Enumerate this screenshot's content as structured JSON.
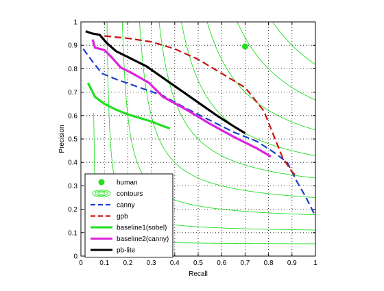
{
  "chart_data": {
    "type": "line",
    "xlabel": "Recall",
    "ylabel": "Precision",
    "xlim": [
      0,
      1
    ],
    "ylim": [
      0,
      1
    ],
    "xticks": [
      "0",
      "0.1",
      "0.2",
      "0.3",
      "0.4",
      "0.5",
      "0.6",
      "0.7",
      "0.8",
      "0.9",
      "1"
    ],
    "yticks": [
      "0",
      "0.1",
      "0.2",
      "0.3",
      "0.4",
      "0.5",
      "0.6",
      "0.7",
      "0.8",
      "0.9",
      "1"
    ],
    "grid": true,
    "legend_position": "bottom-left",
    "contour_color": "#22dd22",
    "contour_f_levels": [
      0.1,
      0.2,
      0.3,
      0.4,
      0.5,
      0.6,
      0.7,
      0.8,
      0.9
    ],
    "series": [
      {
        "name": "human",
        "kind": "marker",
        "color": "#22dd22",
        "points": [
          [
            0.7,
            0.895
          ]
        ]
      },
      {
        "name": "contours",
        "kind": "contour",
        "color": "#22dd22"
      },
      {
        "name": "canny",
        "kind": "line",
        "color": "#1a3fcc",
        "dash": "dashed",
        "points": [
          [
            0.01,
            0.885
          ],
          [
            0.05,
            0.83
          ],
          [
            0.09,
            0.78
          ],
          [
            0.15,
            0.755
          ],
          [
            0.25,
            0.72
          ],
          [
            0.35,
            0.685
          ],
          [
            0.45,
            0.63
          ],
          [
            0.55,
            0.58
          ],
          [
            0.65,
            0.53
          ],
          [
            0.75,
            0.49
          ],
          [
            0.82,
            0.445
          ],
          [
            0.88,
            0.4
          ],
          [
            0.92,
            0.32
          ],
          [
            0.96,
            0.25
          ],
          [
            1.0,
            0.17
          ]
        ]
      },
      {
        "name": "gpb",
        "kind": "line",
        "color": "#cc1111",
        "dash": "dashed",
        "points": [
          [
            0.1,
            0.94
          ],
          [
            0.2,
            0.93
          ],
          [
            0.3,
            0.915
          ],
          [
            0.4,
            0.885
          ],
          [
            0.5,
            0.84
          ],
          [
            0.6,
            0.78
          ],
          [
            0.7,
            0.72
          ],
          [
            0.78,
            0.62
          ],
          [
            0.82,
            0.52
          ],
          [
            0.86,
            0.42
          ],
          [
            0.9,
            0.36
          ],
          [
            0.92,
            0.34
          ]
        ]
      },
      {
        "name": "baseline1(sobel)",
        "kind": "line",
        "color": "#22dd22",
        "dash": "solid",
        "points": [
          [
            0.03,
            0.74
          ],
          [
            0.06,
            0.68
          ],
          [
            0.1,
            0.65
          ],
          [
            0.15,
            0.625
          ],
          [
            0.2,
            0.605
          ],
          [
            0.25,
            0.59
          ],
          [
            0.3,
            0.575
          ],
          [
            0.35,
            0.555
          ],
          [
            0.38,
            0.545
          ]
        ]
      },
      {
        "name": "baseline2(canny)",
        "kind": "line",
        "color": "#dd22dd",
        "dash": "solid",
        "points": [
          [
            0.05,
            0.925
          ],
          [
            0.06,
            0.89
          ],
          [
            0.1,
            0.88
          ],
          [
            0.13,
            0.85
          ],
          [
            0.17,
            0.805
          ],
          [
            0.22,
            0.78
          ],
          [
            0.29,
            0.74
          ],
          [
            0.35,
            0.68
          ],
          [
            0.45,
            0.625
          ],
          [
            0.55,
            0.565
          ],
          [
            0.65,
            0.51
          ],
          [
            0.75,
            0.46
          ],
          [
            0.81,
            0.425
          ]
        ]
      },
      {
        "name": "pb-lite",
        "kind": "line",
        "color": "#000000",
        "dash": "solid",
        "points": [
          [
            0.02,
            0.96
          ],
          [
            0.05,
            0.95
          ],
          [
            0.08,
            0.945
          ],
          [
            0.11,
            0.91
          ],
          [
            0.15,
            0.875
          ],
          [
            0.2,
            0.85
          ],
          [
            0.28,
            0.81
          ],
          [
            0.38,
            0.74
          ],
          [
            0.48,
            0.67
          ],
          [
            0.58,
            0.6
          ],
          [
            0.65,
            0.555
          ],
          [
            0.7,
            0.525
          ]
        ]
      }
    ]
  }
}
